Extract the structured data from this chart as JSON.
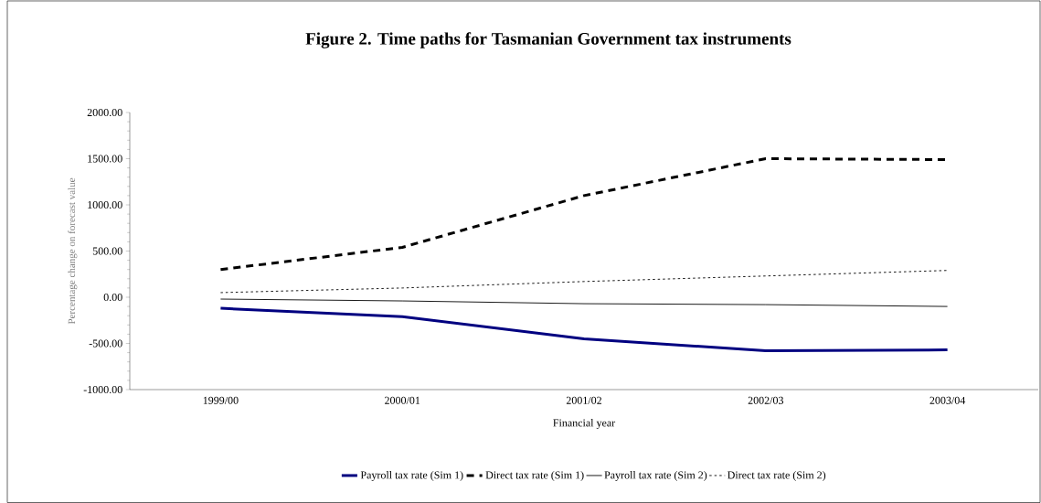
{
  "chart_data": {
    "type": "line",
    "title": "Figure 2.  Time paths for Tasmanian Government tax instruments",
    "xlabel": "Financial year",
    "ylabel": "Percentage change on forecast value",
    "categories": [
      "1999/00",
      "2000/01",
      "2001/02",
      "2002/03",
      "2003/04"
    ],
    "ylim": [
      -1000,
      2000
    ],
    "yticks": [
      {
        "value": -1000,
        "label": "-1000.00"
      },
      {
        "value": -500,
        "label": "-500.00"
      },
      {
        "value": 0,
        "label": "0.00"
      },
      {
        "value": 500,
        "label": "500.00"
      },
      {
        "value": 1000,
        "label": "1000.00"
      },
      {
        "value": 1500,
        "label": "1500.00"
      },
      {
        "value": 2000,
        "label": "2000.00"
      }
    ],
    "legend": "bottom",
    "marker": "none",
    "series": [
      {
        "name": "Payroll tax rate (Sim 1)",
        "color": "#000080",
        "line_style": "solid",
        "values": [
          -120,
          -210,
          -450,
          -580,
          -570
        ]
      },
      {
        "name": "Direct tax rate (Sim 1)",
        "color": "#000000",
        "line_style": "dashed",
        "values": [
          300,
          540,
          1100,
          1500,
          1490
        ]
      },
      {
        "name": "Payroll tax rate (Sim 2)",
        "color": "#000000",
        "line_style": "solid",
        "values": [
          -20,
          -40,
          -70,
          -80,
          -100
        ]
      },
      {
        "name": "Direct tax rate (Sim 2)",
        "color": "#000000",
        "line_style": "dotted",
        "values": [
          50,
          100,
          170,
          230,
          290
        ]
      }
    ]
  }
}
